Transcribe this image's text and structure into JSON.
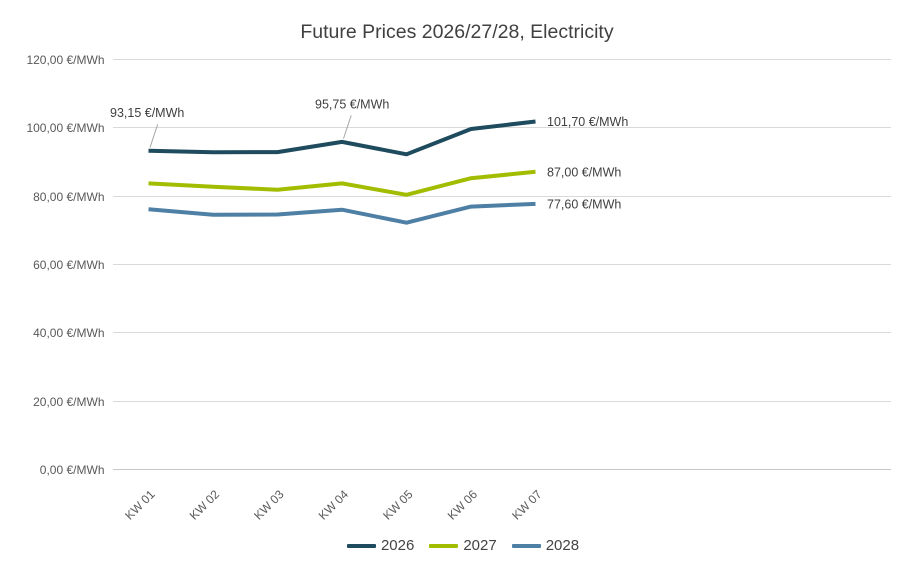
{
  "title": "Future Prices 2026/27/28, Electricity",
  "chart_data": {
    "type": "line",
    "title": "Future Prices 2026/27/28, Electricity",
    "categories": [
      "KW 01",
      "KW 02",
      "KW 03",
      "KW 04",
      "KW 05",
      "KW 06",
      "KW 07"
    ],
    "series": [
      {
        "name": "2026",
        "color": "#1F4B5E",
        "values": [
          93.15,
          92.7,
          92.75,
          95.75,
          92.1,
          99.5,
          101.7
        ]
      },
      {
        "name": "2027",
        "color": "#A2BD00",
        "values": [
          83.6,
          82.6,
          81.75,
          83.6,
          80.25,
          85.1,
          87.0
        ]
      },
      {
        "name": "2028",
        "color": "#4E7FA4",
        "values": [
          76.0,
          74.4,
          74.5,
          75.9,
          72.1,
          76.8,
          77.6
        ]
      }
    ],
    "ylim": [
      0,
      120
    ],
    "ytick_step": 20,
    "ytick_labels": [
      "0,00 €/MWh",
      "20,00 €/MWh",
      "40,00 €/MWh",
      "60,00 €/MWh",
      "80,00 €/MWh",
      "100,00 €/MWh",
      "120,00 €/MWh"
    ],
    "xlabel": "",
    "ylabel": "",
    "grid": "horizontal",
    "legend_position": "bottom",
    "legend_entries": [
      "2026",
      "2027",
      "2028"
    ],
    "annotations": [
      {
        "series": "2026",
        "category": "KW 01",
        "label": "93,15 €/MWh"
      },
      {
        "series": "2026",
        "category": "KW 04",
        "label": "95,75 €/MWh"
      },
      {
        "series": "2026",
        "category": "KW 07",
        "label": "101,70 €/MWh"
      },
      {
        "series": "2027",
        "category": "KW 07",
        "label": "87,00 €/MWh"
      },
      {
        "series": "2028",
        "category": "KW 07",
        "label": "77,60 €/MWh"
      }
    ]
  },
  "colors": {
    "background": "#FFFFFF",
    "gridline": "#D9D9D9",
    "axis_line": "#C8C8C8",
    "axis_text": "#595959",
    "label_text": "#3F3F3F",
    "leader_line": "#A6A6A6"
  }
}
